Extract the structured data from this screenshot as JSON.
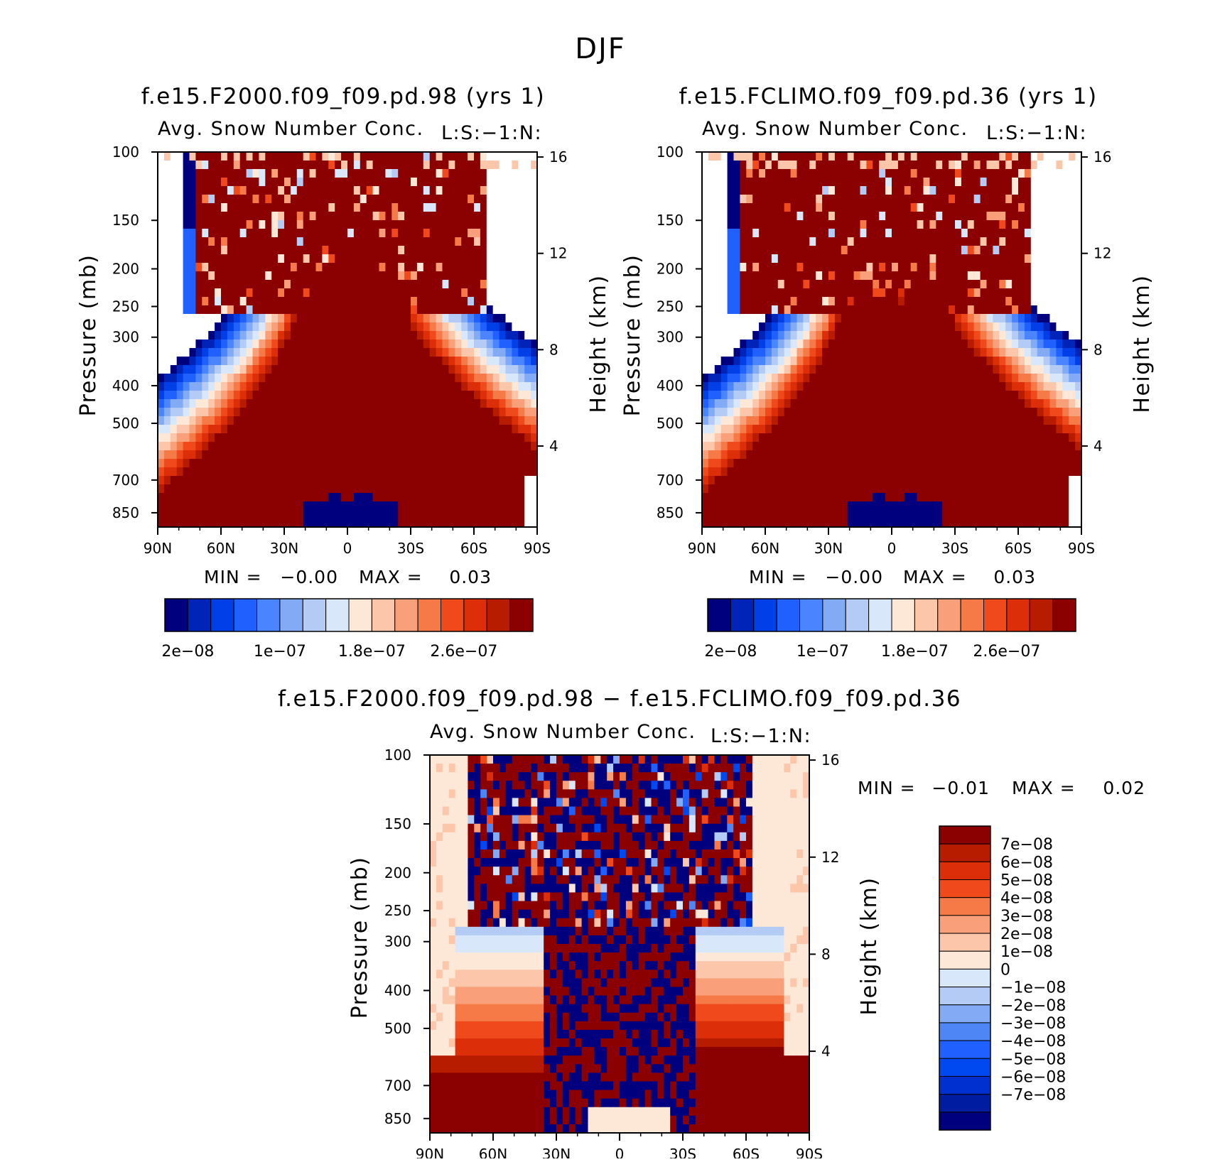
{
  "page_title": "DJF",
  "colors": {
    "diverging_14": [
      "#00007f",
      "#0024b8",
      "#0040e6",
      "#2060ff",
      "#4a84ff",
      "#82aaf5",
      "#b4ccf5",
      "#d8e8fa",
      "#fde8d8",
      "#fcc6aa",
      "#f9a07a",
      "#f57a48",
      "#f04a1c",
      "#dc2e08",
      "#b81c00",
      "#8b0000"
    ],
    "diverging_16": [
      "#00007f",
      "#001ca0",
      "#0030d0",
      "#0048f0",
      "#2060ff",
      "#4e86f5",
      "#82aaf5",
      "#b4ccf5",
      "#d8e8fa",
      "#fde8d8",
      "#fcc6aa",
      "#f9a07a",
      "#f57a48",
      "#f04a1c",
      "#dc2e08",
      "#b81c00",
      "#8b0000"
    ]
  },
  "chart_data": [
    {
      "type": "heatmap",
      "title": "f.e15.F2000.f09_f09.pd.98 (yrs 1)",
      "subtitle": "Avg. Snow Number Conc.",
      "units_label": "L:S:−1:N:",
      "xlabel": "",
      "ylabel": "Pressure (mb)",
      "ylabel_right": "Height (km)",
      "x_ticks": [
        "90N",
        "60N",
        "30N",
        "0",
        "30S",
        "60S",
        "90S"
      ],
      "x_range": [
        90,
        -90
      ],
      "y_ticks": [
        100,
        150,
        200,
        250,
        300,
        400,
        500,
        700,
        850
      ],
      "y_range": [
        100,
        925
      ],
      "y_scale": "log",
      "y_right_ticks": [
        16,
        12,
        8,
        4
      ],
      "stats": {
        "min_label": "MIN =",
        "min_value": "−0.00",
        "max_label": "MAX =",
        "max_value": "0.03"
      },
      "colorbar_labels": [
        "2e−08",
        "1e−07",
        "1.8e−07",
        "2.6e−07"
      ],
      "pattern": "model_a"
    },
    {
      "type": "heatmap",
      "title": "f.e15.FCLIMO.f09_f09.pd.36 (yrs 1)",
      "subtitle": "Avg. Snow Number Conc.",
      "units_label": "L:S:−1:N:",
      "xlabel": "",
      "ylabel": "Pressure (mb)",
      "ylabel_right": "Height (km)",
      "x_ticks": [
        "90N",
        "60N",
        "30N",
        "0",
        "30S",
        "60S",
        "90S"
      ],
      "x_range": [
        90,
        -90
      ],
      "y_ticks": [
        100,
        150,
        200,
        250,
        300,
        400,
        500,
        700,
        850
      ],
      "y_range": [
        100,
        925
      ],
      "y_scale": "log",
      "y_right_ticks": [
        16,
        12,
        8,
        4
      ],
      "stats": {
        "min_label": "MIN =",
        "min_value": "−0.00",
        "max_label": "MAX =",
        "max_value": "0.03"
      },
      "colorbar_labels": [
        "2e−08",
        "1e−07",
        "1.8e−07",
        "2.6e−07"
      ],
      "pattern": "model_b"
    },
    {
      "type": "heatmap",
      "title": "f.e15.F2000.f09_f09.pd.98 − f.e15.FCLIMO.f09_f09.pd.36",
      "subtitle": "Avg. Snow Number Conc.",
      "units_label": "L:S:−1:N:",
      "xlabel": "",
      "ylabel": "Pressure (mb)",
      "ylabel_right": "Height (km)",
      "x_ticks": [
        "90N",
        "60N",
        "30N",
        "0",
        "30S",
        "60S",
        "90S"
      ],
      "x_range": [
        90,
        -90
      ],
      "y_ticks": [
        100,
        150,
        200,
        250,
        300,
        400,
        500,
        700,
        850
      ],
      "y_range": [
        100,
        925
      ],
      "y_scale": "log",
      "y_right_ticks": [
        16,
        12,
        8,
        4
      ],
      "stats": {
        "min_label": "MIN =",
        "min_value": "−0.01",
        "max_label": "MAX =",
        "max_value": "0.02"
      },
      "colorbar_labels": [
        "7e−08",
        "6e−08",
        "5e−08",
        "4e−08",
        "3e−08",
        "2e−08",
        "1e−08",
        "0",
        "−1e−08",
        "−2e−08",
        "−3e−08",
        "−4e−08",
        "−5e−08",
        "−6e−08",
        "−7e−08"
      ],
      "pattern": "difference"
    }
  ]
}
